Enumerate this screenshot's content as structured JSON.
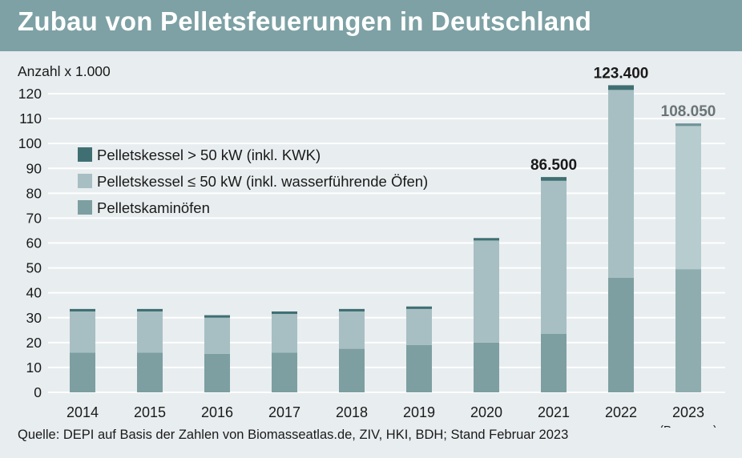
{
  "chart_data": {
    "type": "bar",
    "title": "Zubau von Pelletsfeuerungen in Deutschland",
    "ylabel": "Anzahl x 1.000",
    "ylim": [
      0,
      120
    ],
    "yticks": [
      0,
      10,
      20,
      30,
      40,
      50,
      60,
      70,
      80,
      90,
      100,
      110,
      120
    ],
    "grid": true,
    "legend_position": "top-left",
    "categories": [
      "2014",
      "2015",
      "2016",
      "2017",
      "2018",
      "2019",
      "2020",
      "2021",
      "2022",
      "2023"
    ],
    "category_notes": [
      "",
      "",
      "",
      "",
      "",
      "",
      "",
      "",
      "",
      "(Prognose)"
    ],
    "series": [
      {
        "name": "Pelletskaminöfen",
        "values": [
          16,
          16,
          15.5,
          16,
          17.5,
          19,
          20,
          23.5,
          46,
          49.5
        ],
        "color": "#7d9fa1"
      },
      {
        "name": "Pelletskessel ≤ 50 kW (inkl. wasserführende Öfen)",
        "values": [
          16.5,
          16.5,
          14.5,
          15.5,
          15,
          14.5,
          41,
          61.5,
          75.5,
          57.5
        ],
        "color": "#a7bfc2"
      },
      {
        "name": "Pelletskessel > 50 kW (inkl. KWK)",
        "values": [
          1,
          1,
          1,
          1,
          1,
          1,
          1,
          1.5,
          1.9,
          1.05
        ],
        "color": "#3f6f73"
      }
    ],
    "annotations": [
      {
        "category": "2021",
        "text": "86.500"
      },
      {
        "category": "2022",
        "text": "123.400"
      },
      {
        "category": "2023",
        "text": "108.050"
      }
    ],
    "prognosis_colors": {
      "Pelletskaminöfen": "#8fadaf",
      "Pelletskessel ≤ 50 kW (inkl. wasserführende Öfen)": "#b7cccf",
      "Pelletskessel > 50 kW (inkl. KWK)": "#6f9498"
    }
  },
  "source": "Quelle: DEPI auf Basis der Zahlen von Biomasseatlas.de, ZIV, HKI, BDH; Stand Februar 2023",
  "colors": {
    "header": "#7da1a4",
    "background": "#e8edef",
    "grid": "#ffffff",
    "text": "#1a1a1a"
  }
}
